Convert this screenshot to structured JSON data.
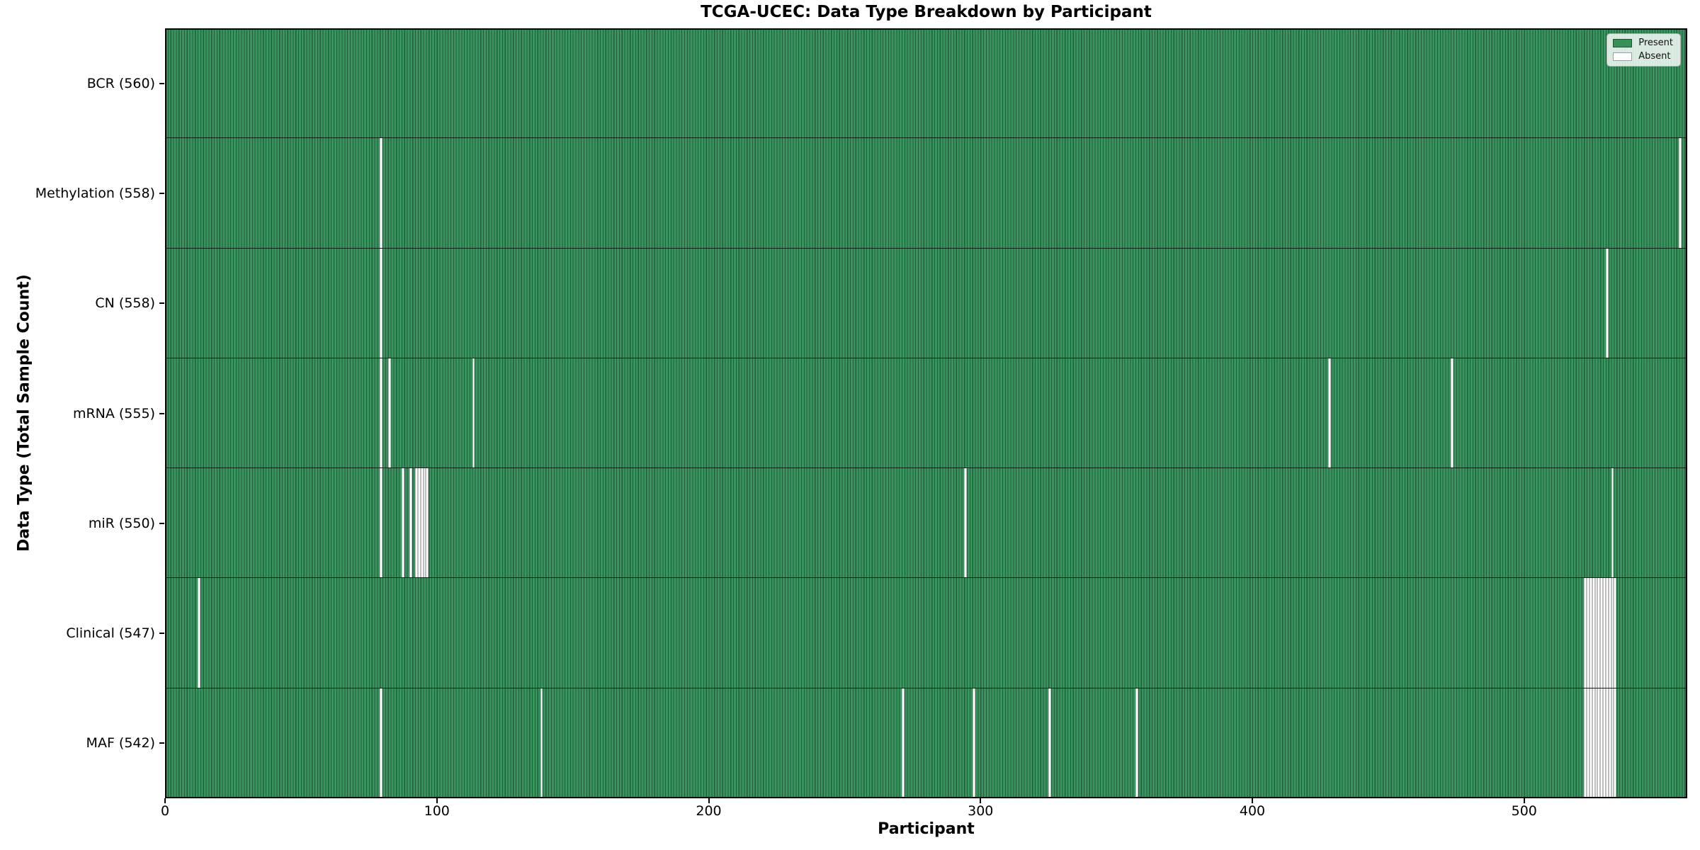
{
  "chart_data": {
    "type": "heatmap",
    "title": "TCGA-UCEC: Data Type Breakdown by Participant",
    "xlabel": "Participant",
    "ylabel": "Data Type (Total Sample Count)",
    "n_participants": 560,
    "x_axis": {
      "min": 0,
      "max": 560,
      "ticks": [
        0,
        100,
        200,
        300,
        400,
        500
      ]
    },
    "legend_position": "upper right",
    "grid": false,
    "colors": {
      "present": "#3a9460",
      "present_stripe": "#235e3c",
      "legend_present": "#349257",
      "absent": "#ffffff",
      "absent_edge": "#bdbdbd",
      "frame": "#000000"
    },
    "legend_items": [
      {
        "label": "Present",
        "color": "#349257"
      },
      {
        "label": "Absent",
        "color": "#ffffff"
      }
    ],
    "rows": [
      {
        "label": "BCR (560)",
        "data_type": "BCR",
        "total": 560,
        "absent_participants": []
      },
      {
        "label": "Methylation (558)",
        "data_type": "Methylation",
        "total": 558,
        "absent_participants": [
          79,
          557
        ]
      },
      {
        "label": "CN (558)",
        "data_type": "CN",
        "total": 558,
        "absent_participants": [
          79,
          530
        ]
      },
      {
        "label": "mRNA (555)",
        "data_type": "mRNA",
        "total": 555,
        "absent_participants": [
          79,
          82,
          113,
          428,
          473
        ]
      },
      {
        "label": "miR (550)",
        "data_type": "miR",
        "total": 550,
        "absent_participants": [
          79,
          87,
          90,
          92,
          93,
          94,
          95,
          96,
          294,
          532
        ]
      },
      {
        "label": "Clinical (547)",
        "data_type": "Clinical",
        "total": 547,
        "absent_participants": [
          12,
          522,
          523,
          524,
          525,
          526,
          527,
          528,
          529,
          530,
          531,
          532,
          533
        ]
      },
      {
        "label": "MAF (542)",
        "data_type": "MAF",
        "total": 542,
        "absent_participants": [
          79,
          138,
          271,
          297,
          325,
          357,
          522,
          523,
          524,
          525,
          526,
          527,
          528,
          529,
          530,
          531,
          532,
          533
        ]
      }
    ]
  }
}
